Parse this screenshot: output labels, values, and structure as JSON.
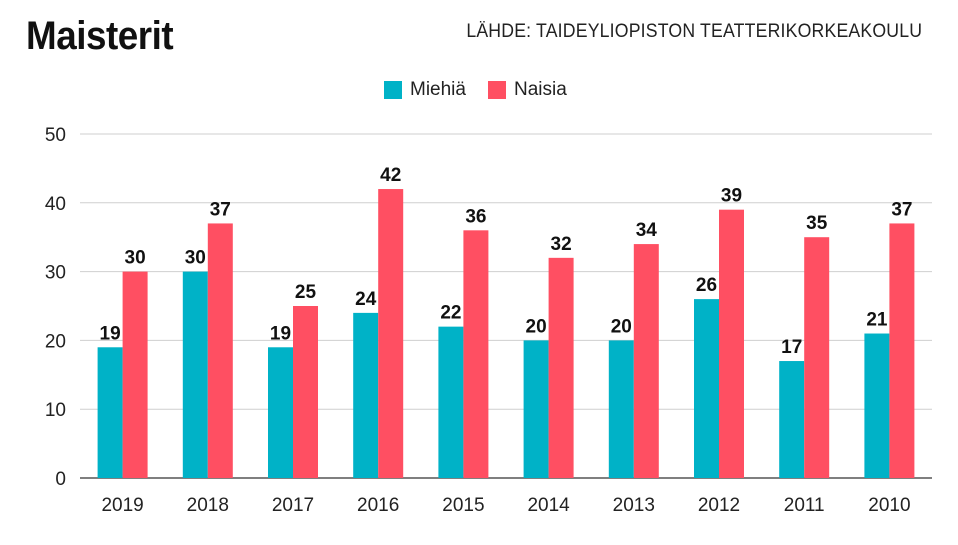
{
  "header": {
    "title": "Maisterit",
    "source": "LÄHDE: TAIDEYLIOPISTON TEATTERIKORKEAKOULU"
  },
  "chart_data": {
    "type": "bar",
    "title": "Maisterit",
    "xlabel": "",
    "ylabel": "",
    "ylim": [
      0,
      50
    ],
    "yticks": [
      0,
      10,
      20,
      30,
      40,
      50
    ],
    "grid": true,
    "legend_position": "top",
    "categories": [
      "2019",
      "2018",
      "2017",
      "2016",
      "2015",
      "2014",
      "2013",
      "2012",
      "2011",
      "2010"
    ],
    "series": [
      {
        "name": "Miehiä",
        "color": "#00b2c7",
        "values": [
          19,
          30,
          19,
          24,
          22,
          20,
          20,
          26,
          17,
          21
        ]
      },
      {
        "name": "Naisia",
        "color": "#ff4f62",
        "values": [
          30,
          37,
          25,
          42,
          36,
          32,
          34,
          39,
          35,
          37
        ]
      }
    ]
  }
}
